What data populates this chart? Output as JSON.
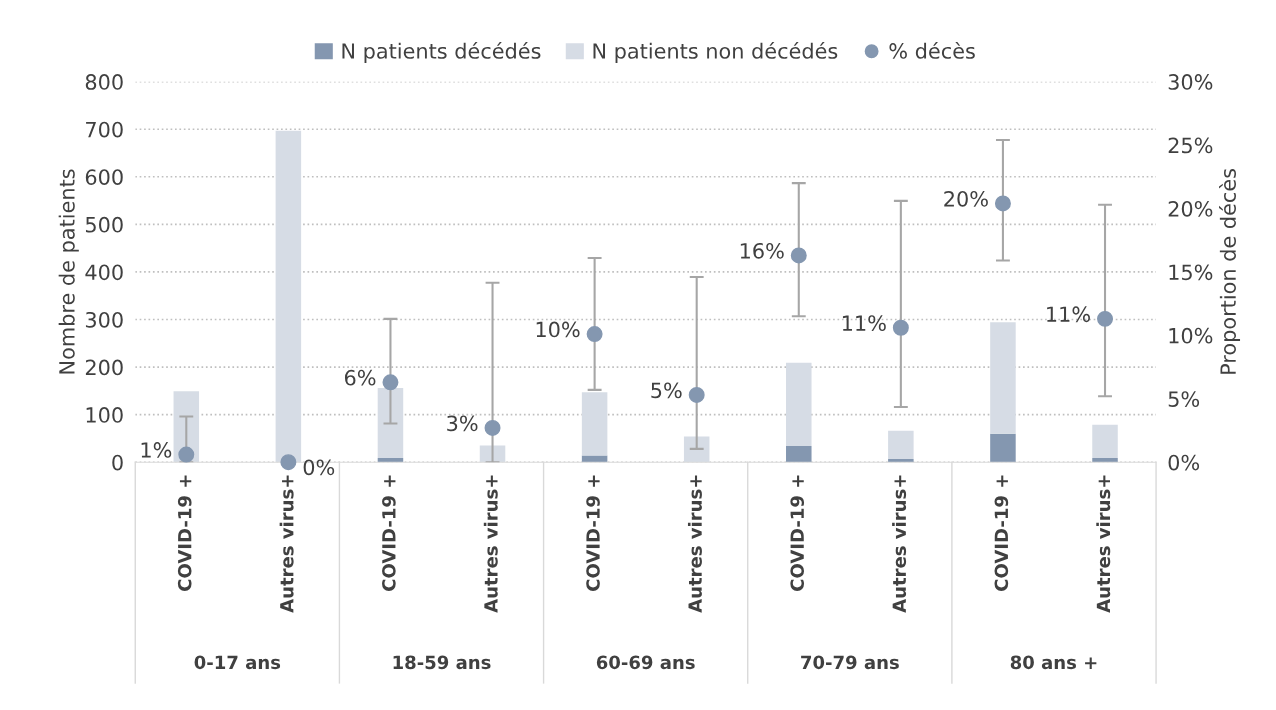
{
  "chart_data": {
    "type": "bar",
    "stacked": true,
    "categories": [
      "COVID-19 +",
      "Autres virus+",
      "COVID-19 +",
      "Autres virus+",
      "COVID-19 +",
      "Autres virus+",
      "COVID-19 +",
      "Autres virus+",
      "COVID-19 +",
      "Autres virus+"
    ],
    "annotations": [
      "0-17 ans",
      "18-59 ans",
      "60-69 ans",
      "70-79 ans",
      "80 ans +"
    ],
    "ylabel": "Nombre de patients",
    "y2label": "Proportion de décès",
    "ylim": [
      0,
      800
    ],
    "yticks": [
      0,
      100,
      200,
      300,
      400,
      500,
      600,
      700,
      800
    ],
    "y2lim": [
      0,
      30
    ],
    "y2ticks": [
      {
        "value": 0,
        "label": "0%"
      },
      {
        "value": 5,
        "label": "5%"
      },
      {
        "value": 10,
        "label": "10%"
      },
      {
        "value": 15,
        "label": "15%"
      },
      {
        "value": 20,
        "label": "20%"
      },
      {
        "value": 25,
        "label": "25%"
      },
      {
        "value": 30,
        "label": "30%"
      }
    ],
    "grid": "y",
    "legend": "top",
    "series": [
      {
        "name": "N patients décédés",
        "color": "#8497b0",
        "values": [
          null,
          0,
          9,
          null,
          14,
          null,
          34,
          7,
          60,
          9
        ]
      },
      {
        "name": "N patients non décédés",
        "color": "#d6dce5",
        "values": [
          149,
          697,
          147,
          35,
          133,
          54,
          175,
          59,
          234,
          70
        ]
      },
      {
        "name": "% décès",
        "type": "scatter",
        "axis": "y2",
        "color": "#8497b0",
        "marker": "circle",
        "values": [
          0.6,
          0,
          6.3,
          2.7,
          10.1,
          5.3,
          16.3,
          10.6,
          20.4,
          11.3
        ],
        "value_labels": [
          "1%",
          "0%",
          "6%",
          "3%",
          "10%",
          "5%",
          "16%",
          "11%",
          "20%",
          "11%"
        ],
        "errors": [
          [
            0,
            3.6
          ],
          null,
          [
            3.05,
            11.3
          ],
          [
            0,
            14.15
          ],
          [
            5.7,
            16.1
          ],
          [
            1.05,
            14.6
          ],
          [
            11.5,
            22.0
          ],
          [
            4.35,
            20.6
          ],
          [
            15.9,
            25.4
          ],
          [
            5.2,
            20.3
          ]
        ]
      }
    ]
  }
}
